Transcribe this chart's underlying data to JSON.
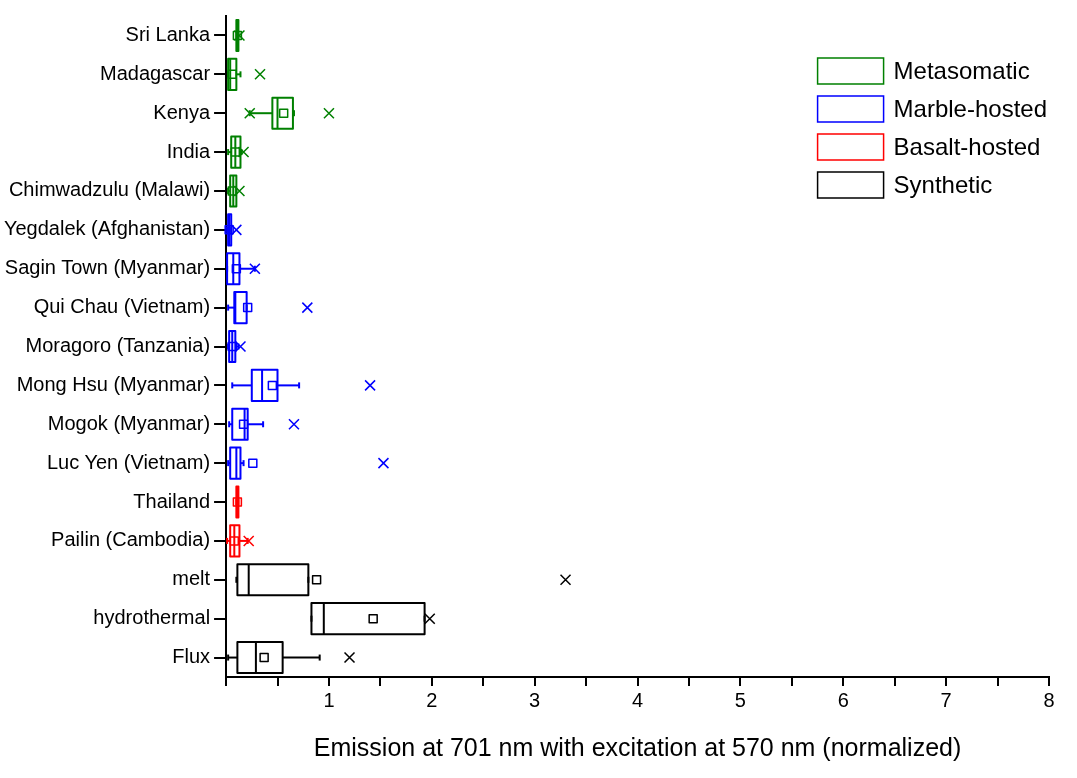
{
  "chart_data": {
    "type": "box",
    "orientation": "horizontal",
    "xlabel": "Emission at 701 nm with excitation at 570 nm (normalized)",
    "categories": [
      "Sri Lanka",
      "Madagascar",
      "Kenya",
      "India",
      "Chimwadzulu (Malawi)",
      "Yegdalek (Afghanistan)",
      "Sagin Town (Myanmar)",
      "Qui Chau (Vietnam)",
      "Moragoro (Tanzania)",
      "Mong Hsu (Myanmar)",
      "Mogok (Myanmar)",
      "Luc Yen (Vietnam)",
      "Thailand",
      "Pailin (Cambodia)",
      "melt",
      "hydrothermal",
      "Flux"
    ],
    "xlim": [
      0,
      8
    ],
    "xticks": [
      {
        "value": 0,
        "label": null
      },
      {
        "value": 0.5,
        "label": null
      },
      1,
      {
        "value": 1.5,
        "label": null
      },
      2,
      {
        "value": 2.5,
        "label": null
      },
      3,
      {
        "value": 3.5,
        "label": null
      },
      4,
      {
        "value": 4.5,
        "label": null
      },
      5,
      {
        "value": 5.5,
        "label": null
      },
      6,
      {
        "value": 6.5,
        "label": null
      },
      7,
      {
        "value": 7.5,
        "label": null
      },
      8
    ],
    "grid": false,
    "legend": "top right",
    "series": [
      {
        "name": "Metasomatic",
        "color": "#008000",
        "boxes": [
          {
            "low": 0.1,
            "q1": 0.1,
            "median": 0.11,
            "q3": 0.12,
            "high": 0.12,
            "mean": 0.11,
            "outliers": [
              0.13
            ]
          },
          {
            "low": 0.02,
            "q1": 0.02,
            "median": 0.04,
            "q3": 0.1,
            "high": 0.14,
            "mean": 0.06,
            "outliers": [
              0.33
            ]
          },
          {
            "low": 0.23,
            "q1": 0.45,
            "median": 0.5,
            "q3": 0.65,
            "high": 0.66,
            "mean": 0.56,
            "outliers": [
              0.23,
              1.0
            ]
          },
          {
            "low": 0.02,
            "q1": 0.05,
            "median": 0.09,
            "q3": 0.14,
            "high": 0.15,
            "mean": 0.09,
            "outliers": [
              0.17
            ]
          },
          {
            "low": 0.02,
            "q1": 0.04,
            "median": 0.07,
            "q3": 0.1,
            "high": 0.1,
            "mean": 0.06,
            "outliers": [
              0.13
            ]
          },
          null,
          null,
          null,
          null,
          null,
          null,
          null,
          null,
          null,
          null,
          null,
          null
        ]
      },
      {
        "name": "Marble-hosted",
        "color": "#0000ff",
        "boxes": [
          null,
          null,
          null,
          null,
          null,
          {
            "low": 0.01,
            "q1": 0.02,
            "median": 0.03,
            "q3": 0.05,
            "high": 0.05,
            "mean": 0.03,
            "outliers": [
              0.1
            ]
          },
          {
            "low": 0.01,
            "q1": 0.01,
            "median": 0.07,
            "q3": 0.13,
            "high": 0.28,
            "mean": 0.1,
            "outliers": [
              0.28
            ]
          },
          {
            "low": 0.02,
            "q1": 0.08,
            "median": 0.09,
            "q3": 0.2,
            "high": 0.2,
            "mean": 0.21,
            "outliers": [
              0.79
            ]
          },
          {
            "low": 0.02,
            "q1": 0.03,
            "median": 0.06,
            "q3": 0.09,
            "high": 0.12,
            "mean": 0.06,
            "outliers": [
              0.14
            ]
          },
          {
            "low": 0.06,
            "q1": 0.25,
            "median": 0.35,
            "q3": 0.5,
            "high": 0.71,
            "mean": 0.45,
            "outliers": [
              1.4
            ]
          },
          {
            "low": 0.03,
            "q1": 0.06,
            "median": 0.18,
            "q3": 0.21,
            "high": 0.36,
            "mean": 0.17,
            "outliers": [
              0.66
            ]
          },
          {
            "low": 0.02,
            "q1": 0.04,
            "median": 0.1,
            "q3": 0.14,
            "high": 0.17,
            "mean": 0.26,
            "outliers": [
              1.53
            ]
          },
          null,
          null,
          null,
          null,
          null
        ]
      },
      {
        "name": "Basalt-hosted",
        "color": "#ff0000",
        "boxes": [
          null,
          null,
          null,
          null,
          null,
          null,
          null,
          null,
          null,
          null,
          null,
          null,
          {
            "low": 0.1,
            "q1": 0.1,
            "median": 0.11,
            "q3": 0.12,
            "high": 0.12,
            "mean": 0.11
          },
          {
            "low": 0.01,
            "q1": 0.04,
            "median": 0.08,
            "q3": 0.13,
            "high": 0.21,
            "mean": 0.08,
            "outliers": [
              0.22
            ]
          },
          null,
          null,
          null
        ]
      },
      {
        "name": "Synthetic",
        "color": "#000000",
        "boxes": [
          null,
          null,
          null,
          null,
          null,
          null,
          null,
          null,
          null,
          null,
          null,
          null,
          null,
          null,
          {
            "low": 0.1,
            "q1": 0.11,
            "median": 0.22,
            "q3": 0.8,
            "high": 0.8,
            "mean": 0.88,
            "outliers": [
              3.3
            ]
          },
          {
            "low": 0.83,
            "q1": 0.83,
            "median": 0.95,
            "q3": 1.93,
            "high": 1.93,
            "mean": 1.43,
            "outliers": [
              1.98
            ]
          },
          {
            "low": 0.02,
            "q1": 0.11,
            "median": 0.29,
            "q3": 0.55,
            "high": 0.91,
            "mean": 0.37,
            "outliers": [
              1.2
            ]
          }
        ]
      }
    ]
  }
}
